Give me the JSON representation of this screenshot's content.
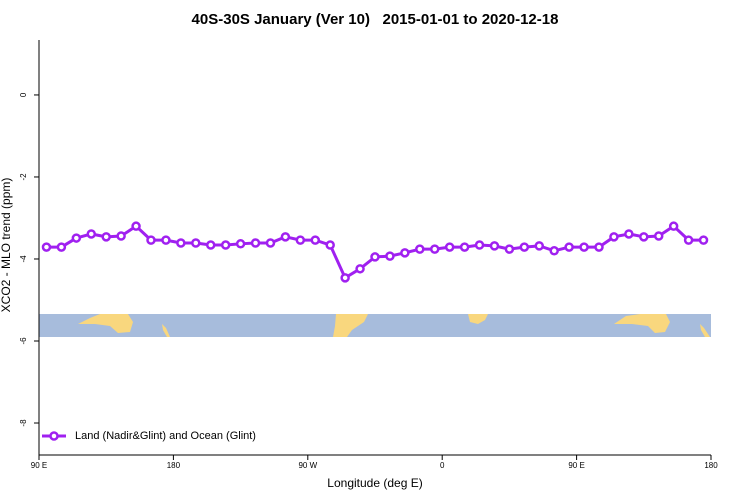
{
  "chart_data": {
    "type": "line",
    "title": "40S-30S January (Ver 10)   2015-01-01 to 2020-12-18",
    "x_label": "Longitude (deg E)",
    "y_label": "XCO2 - MLO trend (ppm)",
    "series": [
      {
        "name": "Land (Nadir&Glint) and Ocean (Glint)",
        "color": "#a020f0",
        "x": [
          95,
          105,
          115,
          125,
          135,
          145,
          155,
          165,
          175,
          185,
          195,
          205,
          215,
          225,
          235,
          245,
          255,
          265,
          275,
          285,
          295,
          305,
          315,
          325,
          335,
          345,
          355,
          365,
          375,
          385,
          395,
          405,
          415,
          425,
          435,
          445,
          455,
          465,
          475,
          485,
          495,
          505,
          515,
          525,
          535
        ],
        "values": [
          -3.71,
          -3.71,
          -3.49,
          -3.39,
          -3.46,
          -3.44,
          -3.2,
          -3.54,
          -3.54,
          -3.61,
          -3.61,
          -3.66,
          -3.66,
          -3.63,
          -3.61,
          -3.61,
          -3.46,
          -3.54,
          -3.54,
          -3.66,
          -4.46,
          -4.24,
          -3.95,
          -3.93,
          -3.85,
          -3.76,
          -3.76,
          -3.71,
          -3.71,
          -3.66,
          -3.68,
          -3.76,
          -3.71,
          -3.68,
          -3.8,
          -3.71,
          -3.71,
          -3.71,
          -3.46,
          -3.39,
          -3.46,
          -3.44,
          -3.2,
          -3.54,
          -3.54
        ]
      }
    ],
    "xlim": [
      90,
      540
    ],
    "xticks": [
      {
        "value": 90,
        "label": "90 E"
      },
      {
        "value": 180,
        "label": "180"
      },
      {
        "value": 270,
        "label": "90 W"
      },
      {
        "value": 360,
        "label": "0"
      },
      {
        "value": 450,
        "label": "90 E"
      },
      {
        "value": 540,
        "label": "180"
      }
    ],
    "ylim": [
      -8.78,
      1.34
    ],
    "yticks": [
      0,
      -2,
      -4,
      -6,
      -8
    ]
  }
}
